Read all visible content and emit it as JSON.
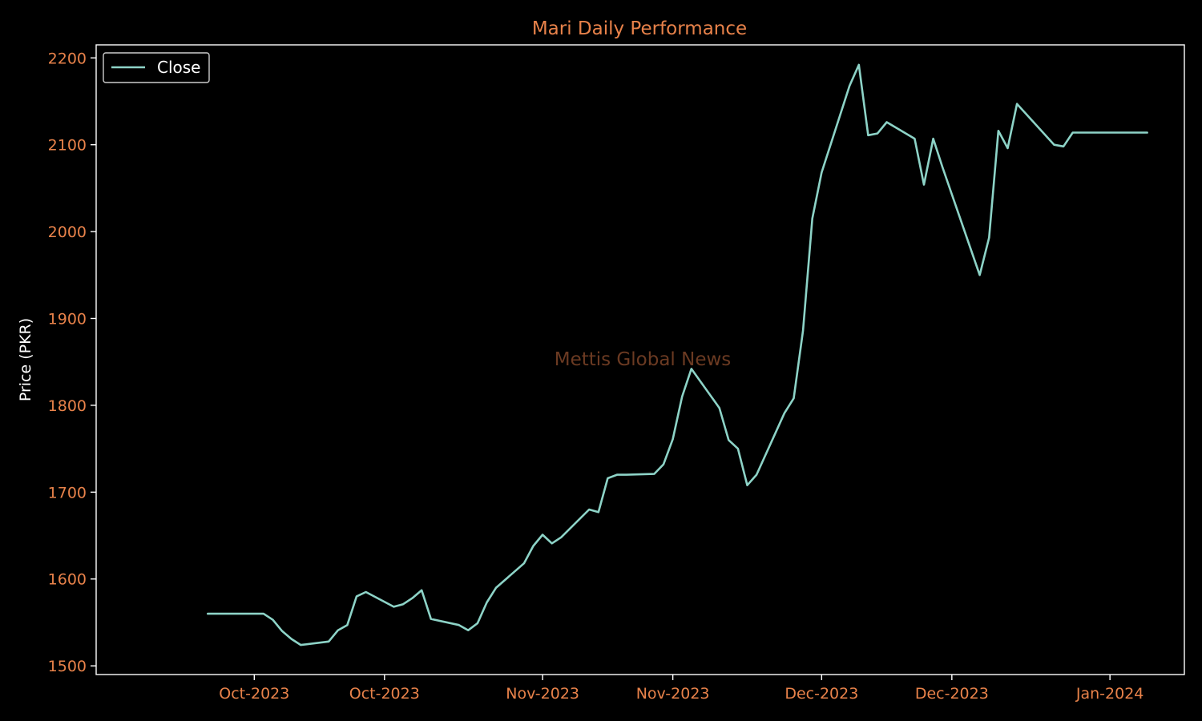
{
  "colors": {
    "background": "#000000",
    "axes": "#ffffff",
    "tick_label": "#e8824a",
    "title": "#e8824a",
    "ylabel": "#ffffff",
    "line": "#8dd3c7",
    "watermark": "#6b3a22",
    "legend_text": "#ffffff",
    "legend_border": "#cccccc"
  },
  "chart_data": {
    "type": "line",
    "title": "Mari Daily Performance",
    "xlabel": "",
    "ylabel": "Price (PKR)",
    "ylim": [
      1490,
      2215
    ],
    "yticks": [
      1500,
      1600,
      1700,
      1800,
      1900,
      2000,
      2100,
      2200
    ],
    "xlim": [
      "2023-09-14",
      "2024-01-09"
    ],
    "xticks": [
      {
        "date": "2023-10-01",
        "label": "Oct-2023"
      },
      {
        "date": "2023-10-15",
        "label": "Oct-2023"
      },
      {
        "date": "2023-11-01",
        "label": "Nov-2023"
      },
      {
        "date": "2023-11-15",
        "label": "Nov-2023"
      },
      {
        "date": "2023-12-01",
        "label": "Dec-2023"
      },
      {
        "date": "2023-12-15",
        "label": "Dec-2023"
      },
      {
        "date": "2024-01-01",
        "label": "Jan-2024"
      }
    ],
    "legend": {
      "position": "top-left",
      "entries": [
        "Close"
      ]
    },
    "grid": false,
    "watermark": "Mettis Global News",
    "series": [
      {
        "name": "Close",
        "x": [
          "2023-09-26",
          "2023-09-27",
          "2023-09-28",
          "2023-09-29",
          "2023-10-02",
          "2023-10-03",
          "2023-10-04",
          "2023-10-05",
          "2023-10-06",
          "2023-10-09",
          "2023-10-10",
          "2023-10-11",
          "2023-10-12",
          "2023-10-13",
          "2023-10-16",
          "2023-10-17",
          "2023-10-18",
          "2023-10-19",
          "2023-10-20",
          "2023-10-23",
          "2023-10-24",
          "2023-10-25",
          "2023-10-26",
          "2023-10-27",
          "2023-10-30",
          "2023-10-31",
          "2023-11-01",
          "2023-11-02",
          "2023-11-03",
          "2023-11-06",
          "2023-11-07",
          "2023-11-08",
          "2023-11-09",
          "2023-11-10",
          "2023-11-13",
          "2023-11-14",
          "2023-11-15",
          "2023-11-16",
          "2023-11-17",
          "2023-11-20",
          "2023-11-21",
          "2023-11-22",
          "2023-11-23",
          "2023-11-24",
          "2023-11-27",
          "2023-11-28",
          "2023-11-29",
          "2023-11-30",
          "2023-12-01",
          "2023-12-04",
          "2023-12-05",
          "2023-12-06",
          "2023-12-07",
          "2023-12-08",
          "2023-12-11",
          "2023-12-12",
          "2023-12-13",
          "2023-12-14",
          "2023-12-15",
          "2023-12-18",
          "2023-12-19",
          "2023-12-20",
          "2023-12-21",
          "2023-12-22",
          "2023-12-26",
          "2023-12-27",
          "2023-12-28",
          "2023-12-29",
          "2024-01-01",
          "2024-01-02",
          "2024-01-03",
          "2024-01-04",
          "2024-01-05"
        ],
        "values": [
          1560,
          1560,
          1560,
          1560,
          1560,
          1553,
          1540,
          1531,
          1524,
          1528,
          1541,
          1547,
          1580,
          1585,
          1568,
          1571,
          1578,
          1587,
          1554,
          1547,
          1541,
          1549,
          1573,
          1590,
          1618,
          1638,
          1651,
          1641,
          1648,
          1680,
          1677,
          1716,
          1720,
          1720,
          1721,
          1732,
          1761,
          1810,
          1842,
          1797,
          1760,
          1750,
          1708,
          1720,
          1791,
          1808,
          1886,
          2015,
          2068,
          2168,
          2192,
          2111,
          2113,
          2126,
          2107,
          2054,
          2107,
          2074,
          2043,
          1950,
          1993,
          2116,
          2096,
          2147,
          2100,
          2098,
          2114,
          2114,
          2114,
          2114,
          2114,
          2114,
          2114
        ]
      }
    ]
  }
}
